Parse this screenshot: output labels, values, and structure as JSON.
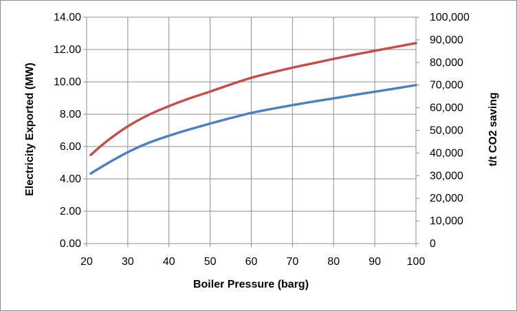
{
  "chart_data": {
    "type": "line",
    "title": "",
    "xlabel": "Boiler Pressure (barg)",
    "ylabel": "Electricity Exported (MW)",
    "y2label": "t/t CO2 saving",
    "xlim": [
      20,
      100
    ],
    "ylim": [
      0,
      14
    ],
    "y2lim": [
      0,
      100000
    ],
    "grid": true,
    "legend": "none",
    "x_ticks": [
      "20",
      "30",
      "40",
      "50",
      "60",
      "70",
      "80",
      "90",
      "100"
    ],
    "y_ticks": [
      "0.00",
      "2.00",
      "4.00",
      "6.00",
      "8.00",
      "10.00",
      "12.00",
      "14.00"
    ],
    "y2_ticks": [
      "0",
      "10,000",
      "20,000",
      "30,000",
      "40,000",
      "50,000",
      "60,000",
      "70,000",
      "80,000",
      "90,000",
      "100,000"
    ],
    "series": [
      {
        "axis": "left",
        "color": "#4f81bd",
        "x": [
          21,
          25,
          30,
          35,
          40,
          45,
          50,
          55,
          60,
          65,
          70,
          75,
          80,
          85,
          90,
          95,
          100
        ],
        "y": [
          4.33,
          4.95,
          5.65,
          6.22,
          6.67,
          7.06,
          7.42,
          7.76,
          8.08,
          8.33,
          8.56,
          8.78,
          8.98,
          9.19,
          9.39,
          9.59,
          9.8
        ]
      },
      {
        "axis": "left",
        "color": "#c0504d",
        "x": [
          21,
          25,
          30,
          35,
          40,
          45,
          50,
          55,
          60,
          65,
          70,
          75,
          80,
          85,
          90,
          95,
          100
        ],
        "y": [
          5.48,
          6.35,
          7.25,
          7.95,
          8.5,
          8.98,
          9.4,
          9.84,
          10.25,
          10.58,
          10.88,
          11.15,
          11.42,
          11.68,
          11.92,
          12.16,
          12.4
        ]
      }
    ]
  }
}
